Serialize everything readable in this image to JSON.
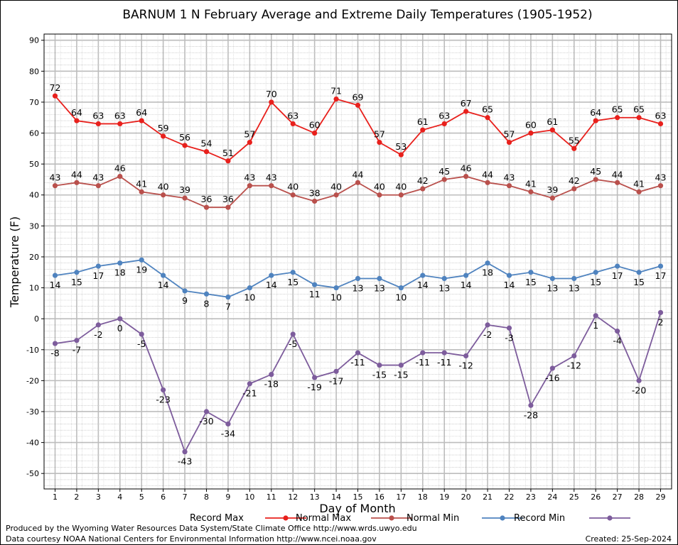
{
  "chart_data": {
    "type": "line",
    "title": "BARNUM 1 N February Average and Extreme Daily Temperatures (1905-1952)",
    "xlabel": "Day of Month",
    "ylabel": "Temperature (F)",
    "ylim": [
      -55,
      92
    ],
    "yticks": [
      -50,
      -40,
      -30,
      -20,
      -10,
      0,
      10,
      20,
      30,
      40,
      50,
      60,
      70,
      80,
      90
    ],
    "x": [
      1,
      2,
      3,
      4,
      5,
      6,
      7,
      8,
      9,
      10,
      11,
      12,
      13,
      14,
      15,
      16,
      17,
      18,
      19,
      20,
      21,
      22,
      23,
      24,
      25,
      26,
      27,
      28,
      29
    ],
    "grid": true,
    "legend_position": "bottom",
    "series": [
      {
        "name": "Record Max",
        "color": "#e8201c",
        "values": [
          72,
          64,
          63,
          63,
          64,
          59,
          56,
          54,
          51,
          57,
          70,
          63,
          60,
          71,
          69,
          57,
          53,
          61,
          63,
          67,
          65,
          57,
          60,
          61,
          55,
          64,
          65,
          65,
          63
        ]
      },
      {
        "name": "Normal Max",
        "color": "#b9504c",
        "values": [
          43,
          44,
          43,
          46,
          41,
          40,
          39,
          36,
          36,
          43,
          43,
          40,
          38,
          40,
          44,
          40,
          40,
          42,
          45,
          46,
          44,
          43,
          41,
          39,
          42,
          45,
          44,
          41,
          43
        ]
      },
      {
        "name": "Normal Min",
        "color": "#4f83bf",
        "values": [
          14,
          15,
          17,
          18,
          19,
          14,
          9,
          8,
          7,
          10,
          14,
          15,
          11,
          10,
          13,
          13,
          10,
          14,
          13,
          14,
          18,
          14,
          15,
          13,
          13,
          15,
          17,
          15,
          17
        ]
      },
      {
        "name": "Record Min",
        "color": "#7d5c9c",
        "values": [
          -8,
          -7,
          -2,
          0,
          -5,
          -23,
          -43,
          -30,
          -34,
          -21,
          -18,
          -5,
          -19,
          -17,
          -11,
          -15,
          -15,
          -11,
          -11,
          -12,
          -2,
          -3,
          -28,
          -16,
          -12,
          1,
          -4,
          -20,
          2
        ]
      }
    ]
  },
  "footer": {
    "line1": "Produced by the Wyoming Water Resources Data System/State Climate Office http://www.wrds.uwyo.edu",
    "line2": "Data courtesy NOAA National Centers for Environmental Information http://www.ncei.noaa.gov",
    "created": "Created:  25-Sep-2024"
  }
}
